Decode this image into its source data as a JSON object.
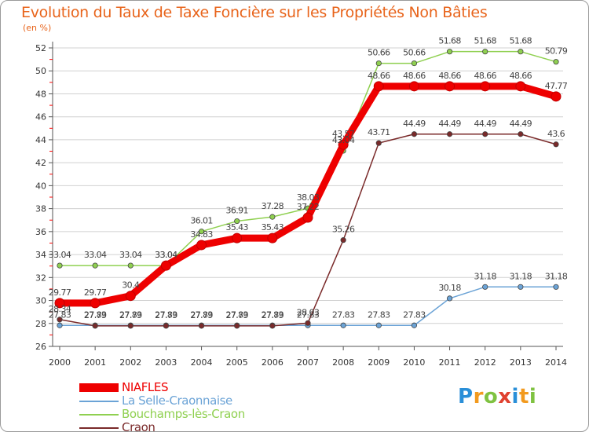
{
  "title": "Evolution du Taux de Taxe Foncière sur les Propriétés Non Bâties",
  "subtitle": "(en %)",
  "logo": {
    "text": "Proxiti",
    "letters": [
      "P",
      "r",
      "o",
      "x",
      "i",
      "t",
      "i"
    ],
    "colors": [
      "#2a8fd8",
      "#f29a1e",
      "#7fc241",
      "#e04130",
      "#2a8fd8",
      "#f29a1e",
      "#7fc241"
    ]
  },
  "colors": {
    "title": "#e8641b",
    "axis": "#555555",
    "grid": "#d0d0d0",
    "tick_red": "#ff0000"
  },
  "chart_data": {
    "type": "line",
    "title": "Evolution du Taux de Taxe Foncière sur les Propriétés Non Bâties",
    "ylabel": "(en %)",
    "xlabel": "",
    "categories": [
      "2000",
      "2001",
      "2002",
      "2003",
      "2004",
      "2005",
      "2006",
      "2007",
      "2008",
      "2009",
      "2010",
      "2011",
      "2012",
      "2013",
      "2014"
    ],
    "ylim": [
      26,
      52
    ],
    "yticks": [
      "26",
      "28",
      "30",
      "32",
      "34",
      "36",
      "38",
      "40",
      "42",
      "44",
      "46",
      "48",
      "50",
      "52"
    ],
    "grid": true,
    "legend_position": "bottom-left",
    "series": [
      {
        "name": "NIAFLES",
        "color": "#ee0000",
        "width": 9,
        "values": [
          29.77,
          29.77,
          30.4,
          33.04,
          34.83,
          35.43,
          35.43,
          37.22,
          43.57,
          48.66,
          48.66,
          48.66,
          48.66,
          48.66,
          47.77
        ],
        "labels": [
          "29.77",
          "29.77",
          "30.4",
          "33.04",
          "34.83",
          "35.43",
          "35.43",
          "37.22",
          "43.57",
          "48.66",
          "48.66",
          "48.66",
          "48.66",
          "48.66",
          "47.77"
        ]
      },
      {
        "name": "La Selle-Craonnaise",
        "color": "#6ba3d6",
        "width": 1.5,
        "values": [
          27.83,
          27.83,
          27.83,
          27.83,
          27.83,
          27.83,
          27.83,
          27.83,
          27.83,
          27.83,
          27.83,
          30.18,
          31.18,
          31.18,
          31.18
        ],
        "labels": [
          "27.83",
          "27.83",
          "27.83",
          "27.83",
          "27.83",
          "27.83",
          "27.83",
          "27.83",
          "27.83",
          "27.83",
          "27.83",
          "30.18",
          "31.18",
          "31.18",
          "31.18"
        ]
      },
      {
        "name": "Bouchamps-lès-Craon",
        "color": "#8fd050",
        "width": 1.5,
        "values": [
          33.04,
          33.04,
          33.04,
          33.04,
          36.01,
          36.91,
          37.28,
          38.03,
          43.04,
          50.66,
          50.66,
          51.68,
          51.68,
          51.68,
          50.79
        ],
        "labels": [
          "33.04",
          "33.04",
          "33.04",
          "33.04",
          "36.01",
          "36.91",
          "37.28",
          "38.03",
          "43.04",
          "50.66",
          "50.66",
          "51.68",
          "51.68",
          "51.68",
          "50.79"
        ]
      },
      {
        "name": "Craon",
        "color": "#7a2a2a",
        "width": 1.5,
        "values": [
          28.34,
          27.79,
          27.79,
          27.79,
          27.79,
          27.79,
          27.79,
          28.03,
          35.26,
          43.71,
          44.49,
          44.49,
          44.49,
          44.49,
          43.6
        ],
        "labels": [
          "28.34",
          "27.79",
          "27.79",
          "27.79",
          "27.79",
          "27.79",
          "27.79",
          "28.03",
          "35.26",
          "43.71",
          "44.49",
          "44.49",
          "44.49",
          "44.49",
          "43.6"
        ]
      }
    ]
  }
}
